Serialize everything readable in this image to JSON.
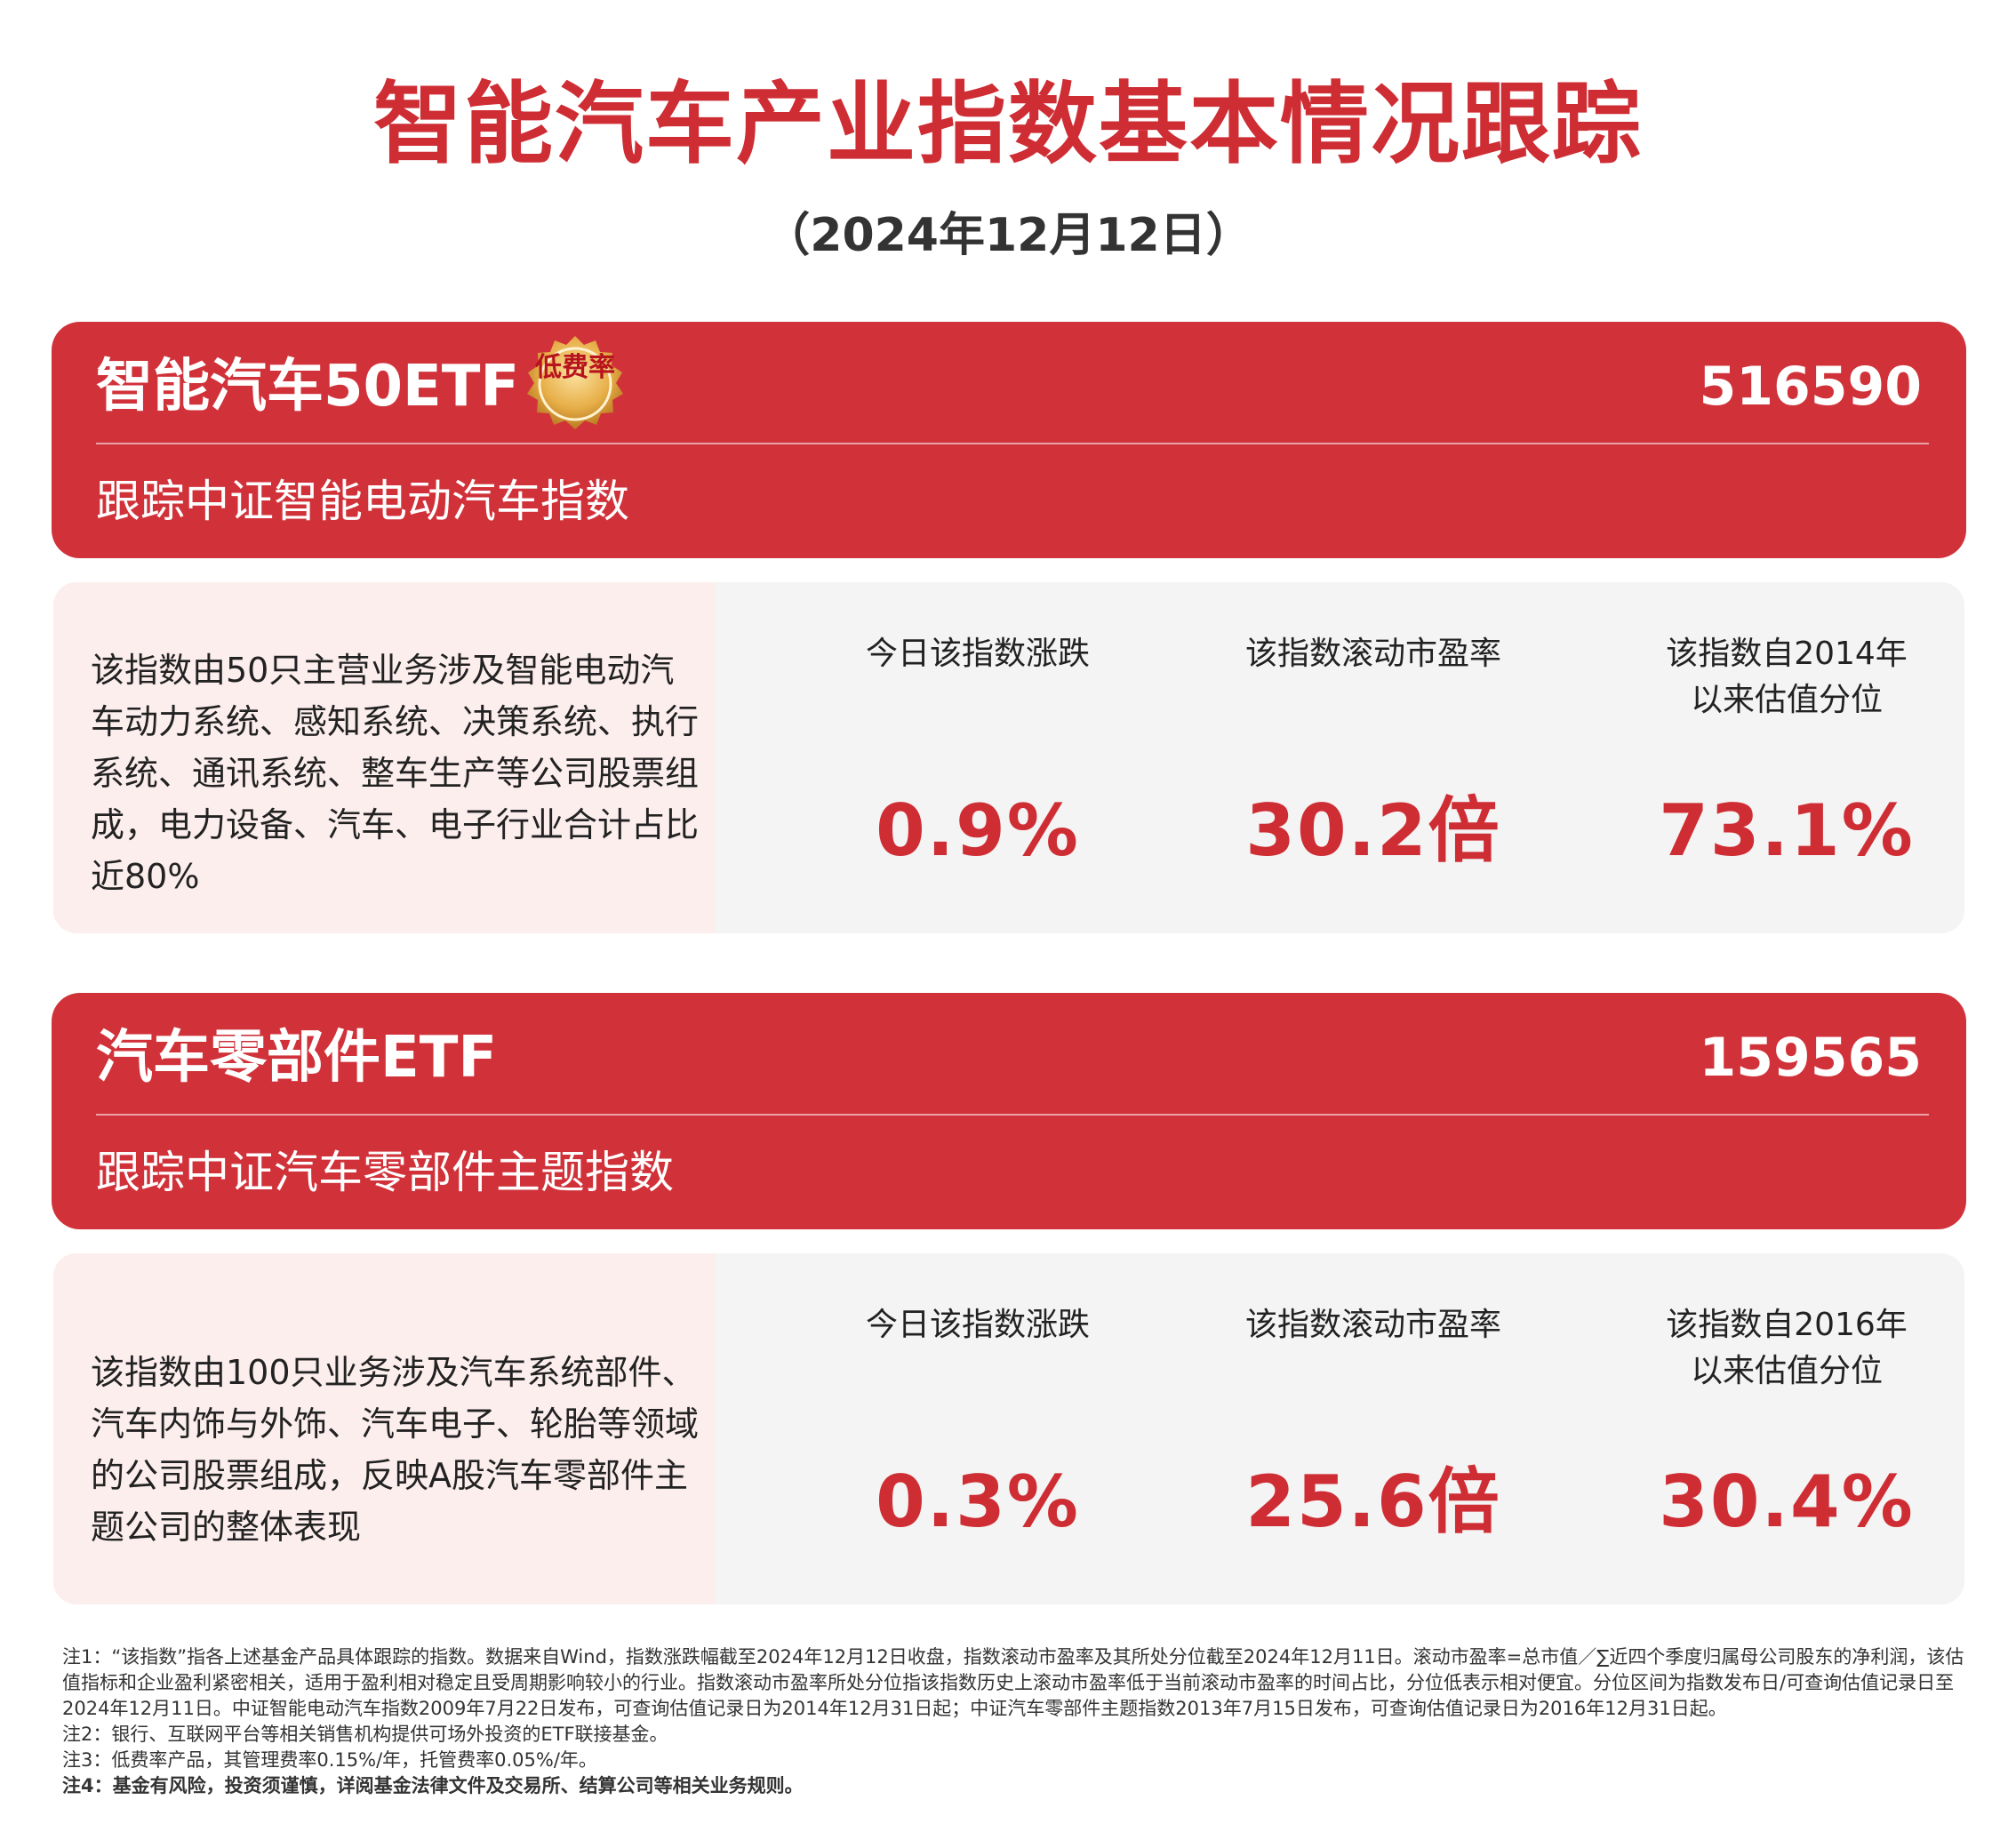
{
  "header": {
    "title": "智能汽车产业指数基本情况跟踪",
    "date": "（2024年12月12日）"
  },
  "colors": {
    "accent_red": "#d1323a",
    "value_red": "#cf2d34",
    "panel_gray": "#f4f4f4",
    "desc_pink": "#fdeeee",
    "badge_gold": "#e8b04a"
  },
  "funds": [
    {
      "name": "智能汽车50ETF",
      "code": "516590",
      "tracking": "跟踪中证智能电动汽车指数",
      "badge": "低费率",
      "description": "该指数由50只主营业务涉及智能电动汽车动力系统、感知系统、决策系统、执行系统、通讯系统、整车生产等公司股票组成，电力设备、汽车、电子行业合计占比近80%",
      "stats": [
        {
          "label": "今日该指数涨跌",
          "value": "0.9%"
        },
        {
          "label": "该指数滚动市盈率",
          "value": "30.2倍"
        },
        {
          "label": "该指数自2014年以来估值分位",
          "value": "73.1%"
        }
      ]
    },
    {
      "name": "汽车零部件ETF",
      "code": "159565",
      "tracking": "跟踪中证汽车零部件主题指数",
      "description": "该指数由100只业务涉及汽车系统部件、汽车内饰与外饰、汽车电子、轮胎等领域的公司股票组成，反映A股汽车零部件主题公司的整体表现",
      "stats": [
        {
          "label": "今日该指数涨跌",
          "value": "0.3%"
        },
        {
          "label": "该指数滚动市盈率",
          "value": "25.6倍"
        },
        {
          "label": "该指数自2016年以来估值分位",
          "value": "30.4%"
        }
      ]
    }
  ],
  "notes": [
    "注1：“该指数”指各上述基金产品具体跟踪的指数。数据来自Wind，指数涨跌幅截至2024年12月12日收盘，指数滚动市盈率及其所处分位截至2024年12月11日。滚动市盈率=总市值／∑近四个季度归属母公司股东的净利润，该估值指标和企业盈利紧密相关，适用于盈利相对稳定且受周期影响较小的行业。指数滚动市盈率所处分位指该指数历史上滚动市盈率低于当前滚动市盈率的时间占比，分位低表示相对便宜。分位区间为指数发布日/可查询估值记录日至2024年12月11日。中证智能电动汽车指数2009年7月22日发布，可查询估值记录日为2014年12月31日起；中证汽车零部件主题指数2013年7月15日发布，可查询估值记录日为2016年12月31日起。",
    "注2：银行、互联网平台等相关销售机构提供可场外投资的ETF联接基金。",
    "注3：低费率产品，其管理费率0.15%/年，托管费率0.05%/年。",
    "注4：基金有风险，投资须谨慎，详阅基金法律文件及交易所、结算公司等相关业务规则。"
  ]
}
